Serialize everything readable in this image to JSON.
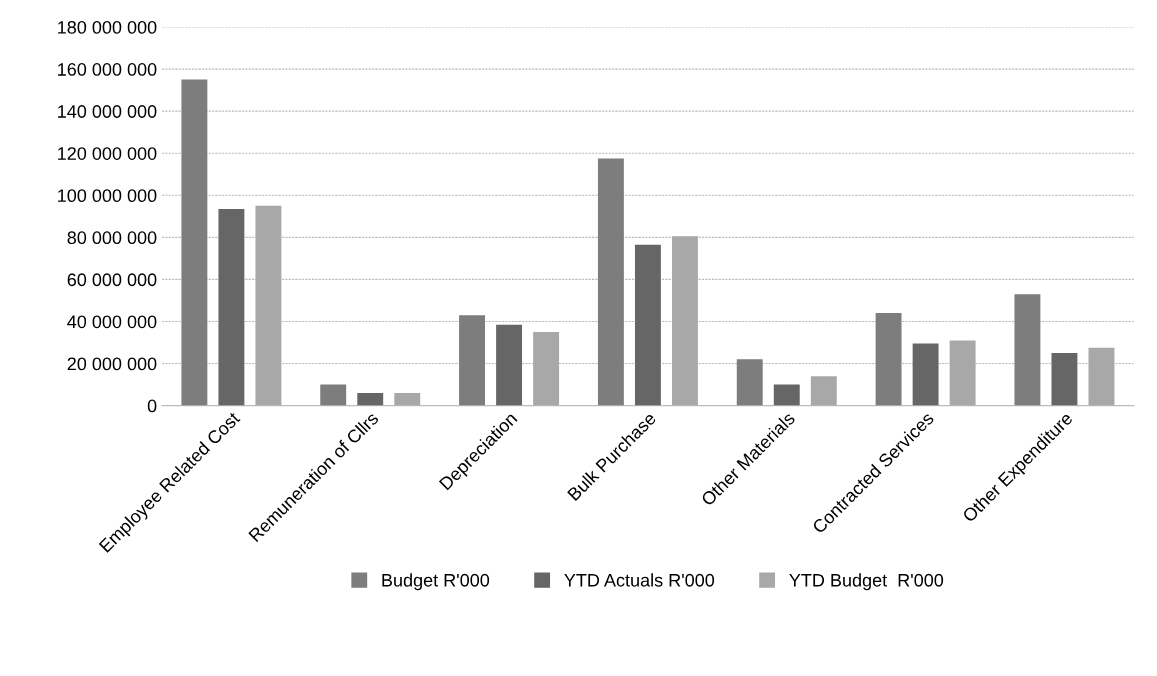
{
  "chart_data": {
    "type": "bar",
    "categories": [
      "Employee Related Cost",
      "Remuneration of Cllrs",
      "Depreciation",
      "Bulk Purchase",
      "Other Materials",
      "Contracted Services",
      "Other Expenditure"
    ],
    "series": [
      {
        "name": "Budget R'000",
        "color": "#7d7d7d",
        "values": [
          155000000,
          10000000,
          43000000,
          117500000,
          22000000,
          44000000,
          53000000
        ]
      },
      {
        "name": "YTD Actuals R'000",
        "color": "#666666",
        "values": [
          93500000,
          6000000,
          38500000,
          76500000,
          10000000,
          29500000,
          25000000
        ]
      },
      {
        "name": "YTD Budget  R'000",
        "color": "#a8a8a8",
        "values": [
          95000000,
          6000000,
          35000000,
          80500000,
          14000000,
          31000000,
          27500000
        ]
      }
    ],
    "ylim": [
      0,
      180000000
    ],
    "yticks": [
      {
        "value": 0,
        "label": "0"
      },
      {
        "value": 20000000,
        "label": "20 000 000"
      },
      {
        "value": 40000000,
        "label": "40 000 000"
      },
      {
        "value": 60000000,
        "label": "60 000 000"
      },
      {
        "value": 80000000,
        "label": "80 000 000"
      },
      {
        "value": 100000000,
        "label": "100 000 000"
      },
      {
        "value": 120000000,
        "label": "120 000 000"
      },
      {
        "value": 140000000,
        "label": "140 000 000"
      },
      {
        "value": 160000000,
        "label": "160 000 000"
      },
      {
        "value": 180000000,
        "label": "180 000 000"
      }
    ],
    "grid": "y",
    "legend": "bottom"
  }
}
